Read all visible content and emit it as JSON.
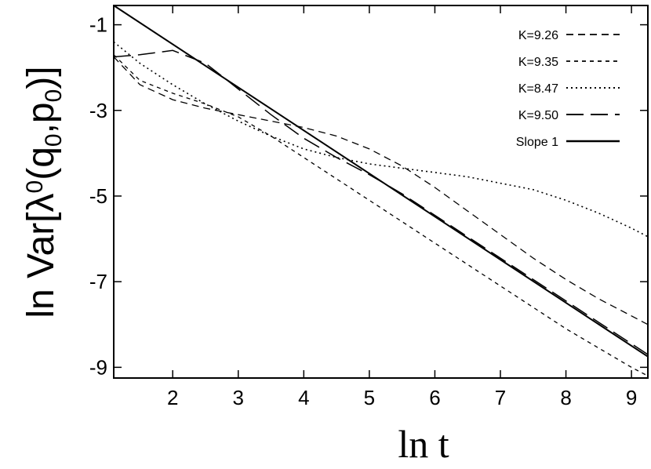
{
  "chart_data": {
    "type": "line",
    "title": "",
    "xlabel": "ln t",
    "ylabel": "ln Var[λ0(q0,p0)]",
    "xlim": [
      1.1,
      9.25
    ],
    "ylim": [
      -9.25,
      -0.55
    ],
    "xticks": [
      2,
      3,
      4,
      5,
      6,
      7,
      8,
      9
    ],
    "yticks": [
      -1,
      -3,
      -5,
      -7,
      -9
    ],
    "grid": false,
    "legend_position": "top-right",
    "series": [
      {
        "name": "K=9.26",
        "style": "dashed-medium",
        "x": [
          1.1,
          1.5,
          2.0,
          2.5,
          3.0,
          3.5,
          4.0,
          4.5,
          5.0,
          5.5,
          6.0,
          6.5,
          7.0,
          7.5,
          8.0,
          8.5,
          9.0,
          9.25
        ],
        "y": [
          -1.75,
          -2.4,
          -2.75,
          -2.95,
          -3.1,
          -3.25,
          -3.4,
          -3.6,
          -3.9,
          -4.3,
          -4.8,
          -5.35,
          -5.9,
          -6.45,
          -6.95,
          -7.4,
          -7.8,
          -8.0
        ]
      },
      {
        "name": "K=9.35",
        "style": "dashed-short",
        "x": [
          1.1,
          1.5,
          2.0,
          2.5,
          3.0,
          3.5,
          4.0,
          4.5,
          5.0,
          5.5,
          6.0,
          6.5,
          7.0,
          7.5,
          8.0,
          8.5,
          9.0,
          9.25
        ],
        "y": [
          -1.7,
          -2.3,
          -2.6,
          -2.85,
          -3.15,
          -3.6,
          -4.1,
          -4.6,
          -5.1,
          -5.6,
          -6.1,
          -6.6,
          -7.1,
          -7.6,
          -8.1,
          -8.55,
          -9.0,
          -9.2
        ]
      },
      {
        "name": "K=8.47",
        "style": "dotted",
        "x": [
          1.1,
          1.5,
          2.0,
          2.5,
          3.0,
          3.5,
          4.0,
          4.5,
          5.0,
          5.5,
          6.0,
          6.5,
          7.0,
          7.5,
          8.0,
          8.5,
          9.0,
          9.25
        ],
        "y": [
          -1.4,
          -1.9,
          -2.4,
          -2.85,
          -3.25,
          -3.6,
          -3.9,
          -4.1,
          -4.25,
          -4.35,
          -4.45,
          -4.55,
          -4.7,
          -4.85,
          -5.1,
          -5.4,
          -5.75,
          -5.95
        ]
      },
      {
        "name": "K=9.50",
        "style": "dashed-long",
        "x": [
          1.1,
          1.5,
          2.0,
          2.5,
          3.0,
          3.5,
          4.0,
          4.5,
          5.0,
          5.5,
          6.0,
          6.5,
          7.0,
          7.5,
          8.0,
          8.5,
          9.0,
          9.25
        ],
        "y": [
          -1.75,
          -1.7,
          -1.6,
          -1.9,
          -2.5,
          -3.1,
          -3.65,
          -4.1,
          -4.5,
          -4.95,
          -5.45,
          -5.95,
          -6.45,
          -6.95,
          -7.45,
          -7.95,
          -8.45,
          -8.7
        ]
      },
      {
        "name": "Slope 1",
        "style": "solid",
        "x": [
          1.1,
          9.25
        ],
        "y": [
          -0.55,
          -8.75
        ]
      }
    ]
  }
}
